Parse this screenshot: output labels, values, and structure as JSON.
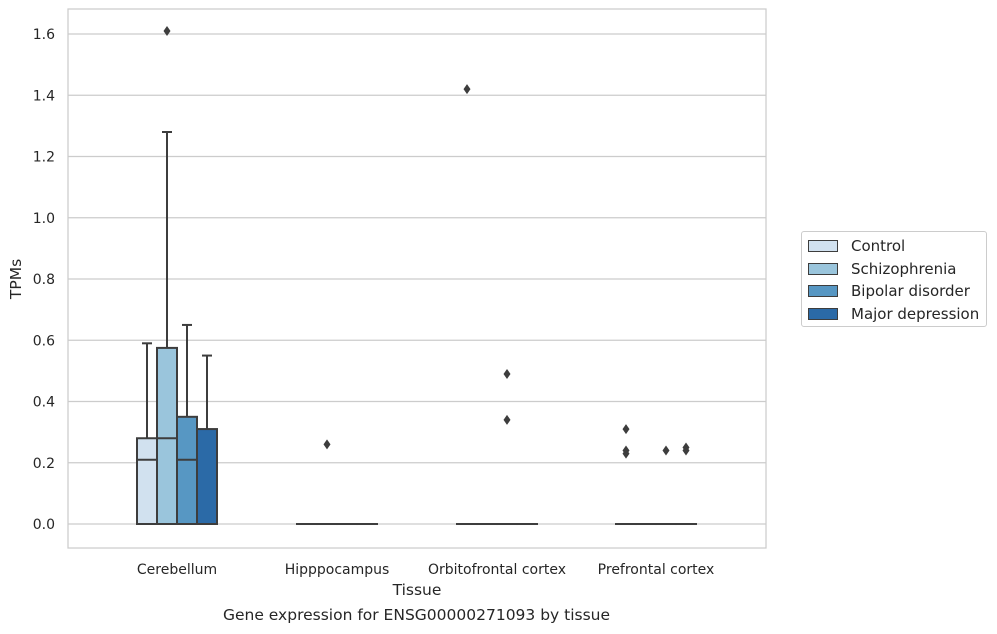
{
  "chart_data": {
    "type": "box",
    "xlabel": "Tissue",
    "ylabel": "TPMs",
    "caption": "Gene expression for ENSG00000271093 by tissue",
    "categories": [
      "Cerebellum",
      "Hipppocampus",
      "Orbitofrontal cortex",
      "Prefrontal cortex"
    ],
    "ylim": [
      -0.08,
      1.69
    ],
    "yticks": [
      0.0,
      0.2,
      0.4,
      0.6,
      0.8,
      1.0,
      1.2,
      1.4,
      1.6
    ],
    "ytick_labels": [
      "0.0",
      "0.2",
      "0.4",
      "0.6",
      "0.8",
      "1.0",
      "1.2",
      "1.4",
      "1.6"
    ],
    "grid": "horizontal",
    "legend_position": "right",
    "series": [
      {
        "name": "Control",
        "color": "#d1e1ef",
        "boxes": [
          {
            "whislo": 0.0,
            "q1": 0.0,
            "med": 0.21,
            "q3": 0.28,
            "whishi": 0.59,
            "fliers": []
          },
          {
            "whislo": 0.0,
            "q1": 0.0,
            "med": 0.0,
            "q3": 0.0,
            "whishi": 0.0,
            "fliers": []
          },
          {
            "whislo": 0.0,
            "q1": 0.0,
            "med": 0.0,
            "q3": 0.0,
            "whishi": 0.0,
            "fliers": [
              1.42
            ]
          },
          {
            "whislo": 0.0,
            "q1": 0.0,
            "med": 0.0,
            "q3": 0.0,
            "whishi": 0.0,
            "fliers": [
              0.31,
              0.24,
              0.23
            ]
          }
        ]
      },
      {
        "name": "Schizophrenia",
        "color": "#9ac5dc",
        "boxes": [
          {
            "whislo": 0.0,
            "q1": 0.0,
            "med": 0.28,
            "q3": 0.575,
            "whishi": 1.28,
            "fliers": [
              1.61
            ]
          },
          {
            "whislo": 0.0,
            "q1": 0.0,
            "med": 0.0,
            "q3": 0.0,
            "whishi": 0.0,
            "fliers": [
              0.26
            ]
          },
          {
            "whislo": 0.0,
            "q1": 0.0,
            "med": 0.0,
            "q3": 0.0,
            "whishi": 0.0,
            "fliers": []
          },
          {
            "whislo": 0.0,
            "q1": 0.0,
            "med": 0.0,
            "q3": 0.0,
            "whishi": 0.0,
            "fliers": []
          }
        ]
      },
      {
        "name": "Bipolar disorder",
        "color": "#5797c3",
        "boxes": [
          {
            "whislo": 0.0,
            "q1": 0.0,
            "med": 0.21,
            "q3": 0.35,
            "whishi": 0.65,
            "fliers": []
          },
          {
            "whislo": 0.0,
            "q1": 0.0,
            "med": 0.0,
            "q3": 0.0,
            "whishi": 0.0,
            "fliers": []
          },
          {
            "whislo": 0.0,
            "q1": 0.0,
            "med": 0.0,
            "q3": 0.0,
            "whishi": 0.0,
            "fliers": [
              0.49,
              0.34
            ]
          },
          {
            "whislo": 0.0,
            "q1": 0.0,
            "med": 0.0,
            "q3": 0.0,
            "whishi": 0.0,
            "fliers": [
              0.24
            ]
          }
        ]
      },
      {
        "name": "Major depression",
        "color": "#2b6aa7",
        "boxes": [
          {
            "whislo": 0.0,
            "q1": 0.0,
            "med": 0.0,
            "q3": 0.31,
            "whishi": 0.55,
            "fliers": []
          },
          {
            "whislo": 0.0,
            "q1": 0.0,
            "med": 0.0,
            "q3": 0.0,
            "whishi": 0.0,
            "fliers": []
          },
          {
            "whislo": 0.0,
            "q1": 0.0,
            "med": 0.0,
            "q3": 0.0,
            "whishi": 0.0,
            "fliers": []
          },
          {
            "whislo": 0.0,
            "q1": 0.0,
            "med": 0.0,
            "q3": 0.0,
            "whishi": 0.0,
            "fliers": [
              0.25,
              0.24
            ]
          }
        ]
      }
    ]
  }
}
